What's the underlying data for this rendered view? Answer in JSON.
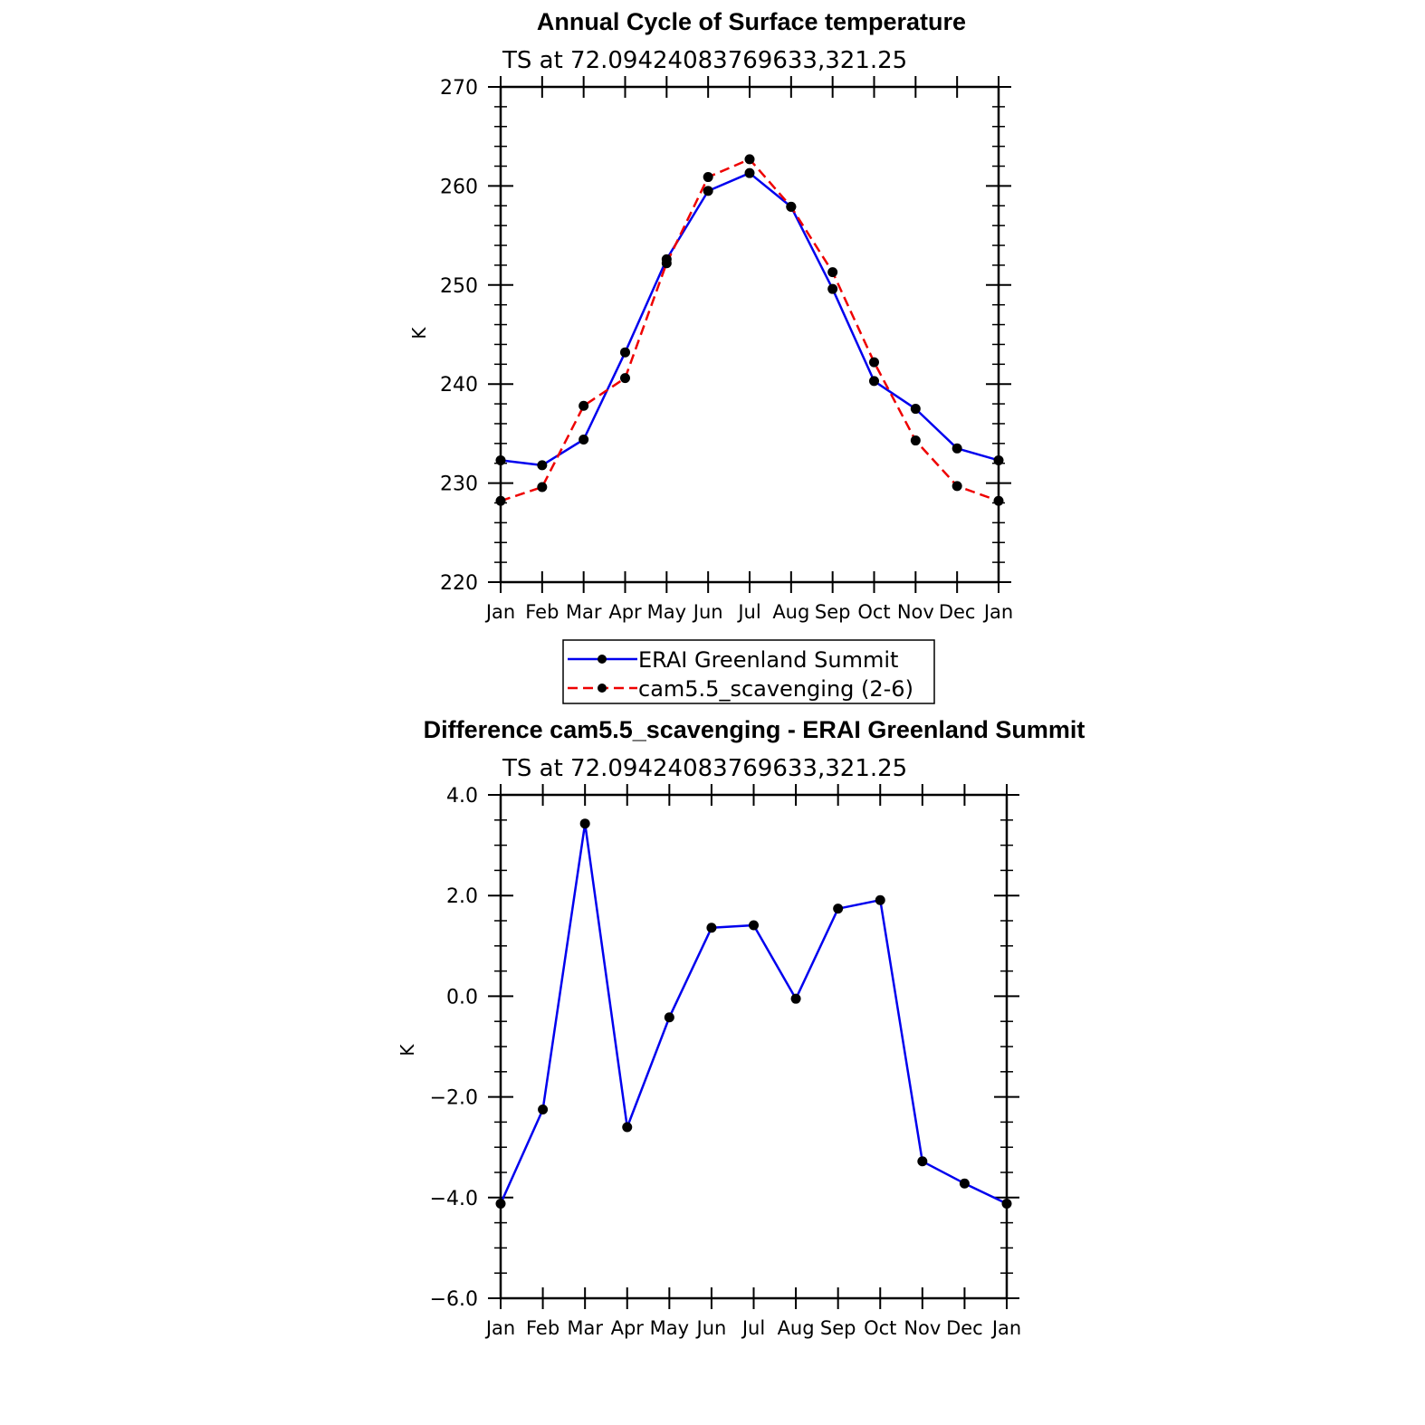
{
  "colors": {
    "series_blue": "#0000ee",
    "series_red": "#ee0000",
    "marker": "#000000",
    "axes": "#000000"
  },
  "chart_data": [
    {
      "type": "line",
      "title": "Annual Cycle of Surface temperature",
      "subtitle": "TS at 72.09424083769633,321.25",
      "xlabel": "",
      "ylabel": "K",
      "categories": [
        "Jan",
        "Feb",
        "Mar",
        "Apr",
        "May",
        "Jun",
        "Jul",
        "Aug",
        "Sep",
        "Oct",
        "Nov",
        "Dec",
        "Jan"
      ],
      "ylim": [
        220,
        270
      ],
      "yticks": [
        220,
        230,
        240,
        250,
        260,
        270
      ],
      "ytick_labels": [
        "220",
        "230",
        "240",
        "250",
        "260",
        "270"
      ],
      "grid": false,
      "legend": "below",
      "series": [
        {
          "name": "ERAI Greenland Summit",
          "style": "solid",
          "color": "#0000ee",
          "values": [
            232.3,
            231.8,
            234.4,
            243.2,
            252.6,
            259.5,
            261.3,
            257.9,
            249.6,
            240.3,
            237.5,
            233.5,
            232.3
          ]
        },
        {
          "name": "cam5.5_scavenging (2-6)",
          "style": "dashed",
          "color": "#ee0000",
          "values": [
            228.2,
            229.6,
            237.8,
            240.6,
            252.2,
            260.9,
            262.7,
            257.9,
            251.3,
            242.2,
            234.3,
            229.7,
            228.2
          ]
        }
      ]
    },
    {
      "type": "line",
      "title": "Difference cam5.5_scavenging - ERAI Greenland Summit",
      "subtitle": "TS at 72.09424083769633,321.25",
      "xlabel": "",
      "ylabel": "K",
      "categories": [
        "Jan",
        "Feb",
        "Mar",
        "Apr",
        "May",
        "Jun",
        "Jul",
        "Aug",
        "Sep",
        "Oct",
        "Nov",
        "Dec",
        "Jan"
      ],
      "ylim": [
        -6,
        4
      ],
      "yticks": [
        -6,
        -4,
        -2,
        0,
        2,
        4
      ],
      "ytick_labels": [
        "−6.0",
        "−4.0",
        "−2.0",
        "0.0",
        "2.0",
        "4.0"
      ],
      "grid": false,
      "series": [
        {
          "style": "solid",
          "color": "#0000ee",
          "values": [
            -4.12,
            -2.25,
            3.43,
            -2.6,
            -0.42,
            1.36,
            1.41,
            -0.05,
            1.74,
            1.91,
            -3.28,
            -3.72,
            -4.12
          ]
        }
      ]
    }
  ]
}
